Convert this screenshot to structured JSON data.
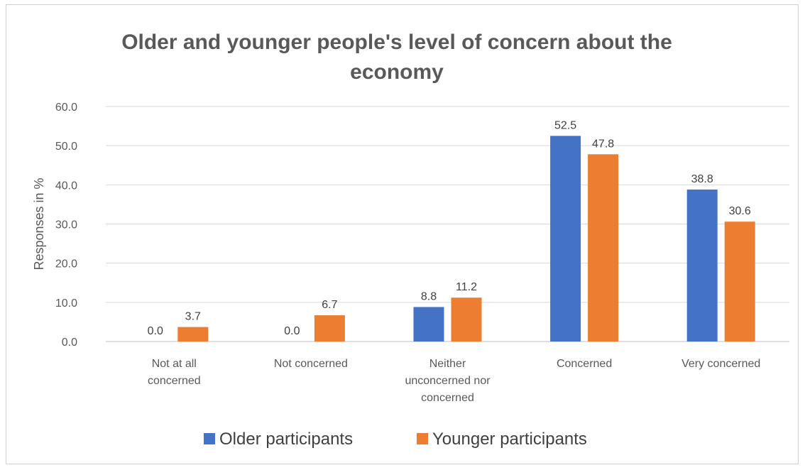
{
  "chart_data": {
    "type": "bar",
    "title_lines": [
      "Older and younger people's level of concern about the",
      "economy"
    ],
    "xlabel": "",
    "ylabel": "Responses in %",
    "ylim": [
      0,
      60
    ],
    "yticks": [
      "0.0",
      "10.0",
      "20.0",
      "30.0",
      "40.0",
      "50.0",
      "60.0"
    ],
    "grid": true,
    "legend_position": "bottom",
    "categories": [
      [
        "Not at all",
        "concerned"
      ],
      [
        "Not concerned"
      ],
      [
        "Neither",
        "unconcerned nor",
        "concerned"
      ],
      [
        "Concerned"
      ],
      [
        "Very concerned"
      ]
    ],
    "series": [
      {
        "name": "Older participants",
        "color": "#4472C4",
        "values": [
          0.0,
          0.0,
          8.8,
          52.5,
          38.8
        ],
        "labels": [
          "0.0",
          "0.0",
          "8.8",
          "52.5",
          "38.8"
        ]
      },
      {
        "name": "Younger participants",
        "color": "#ED7D31",
        "values": [
          3.7,
          6.7,
          11.2,
          47.8,
          30.6
        ],
        "labels": [
          "3.7",
          "6.7",
          "11.2",
          "47.8",
          "30.6"
        ]
      }
    ]
  }
}
